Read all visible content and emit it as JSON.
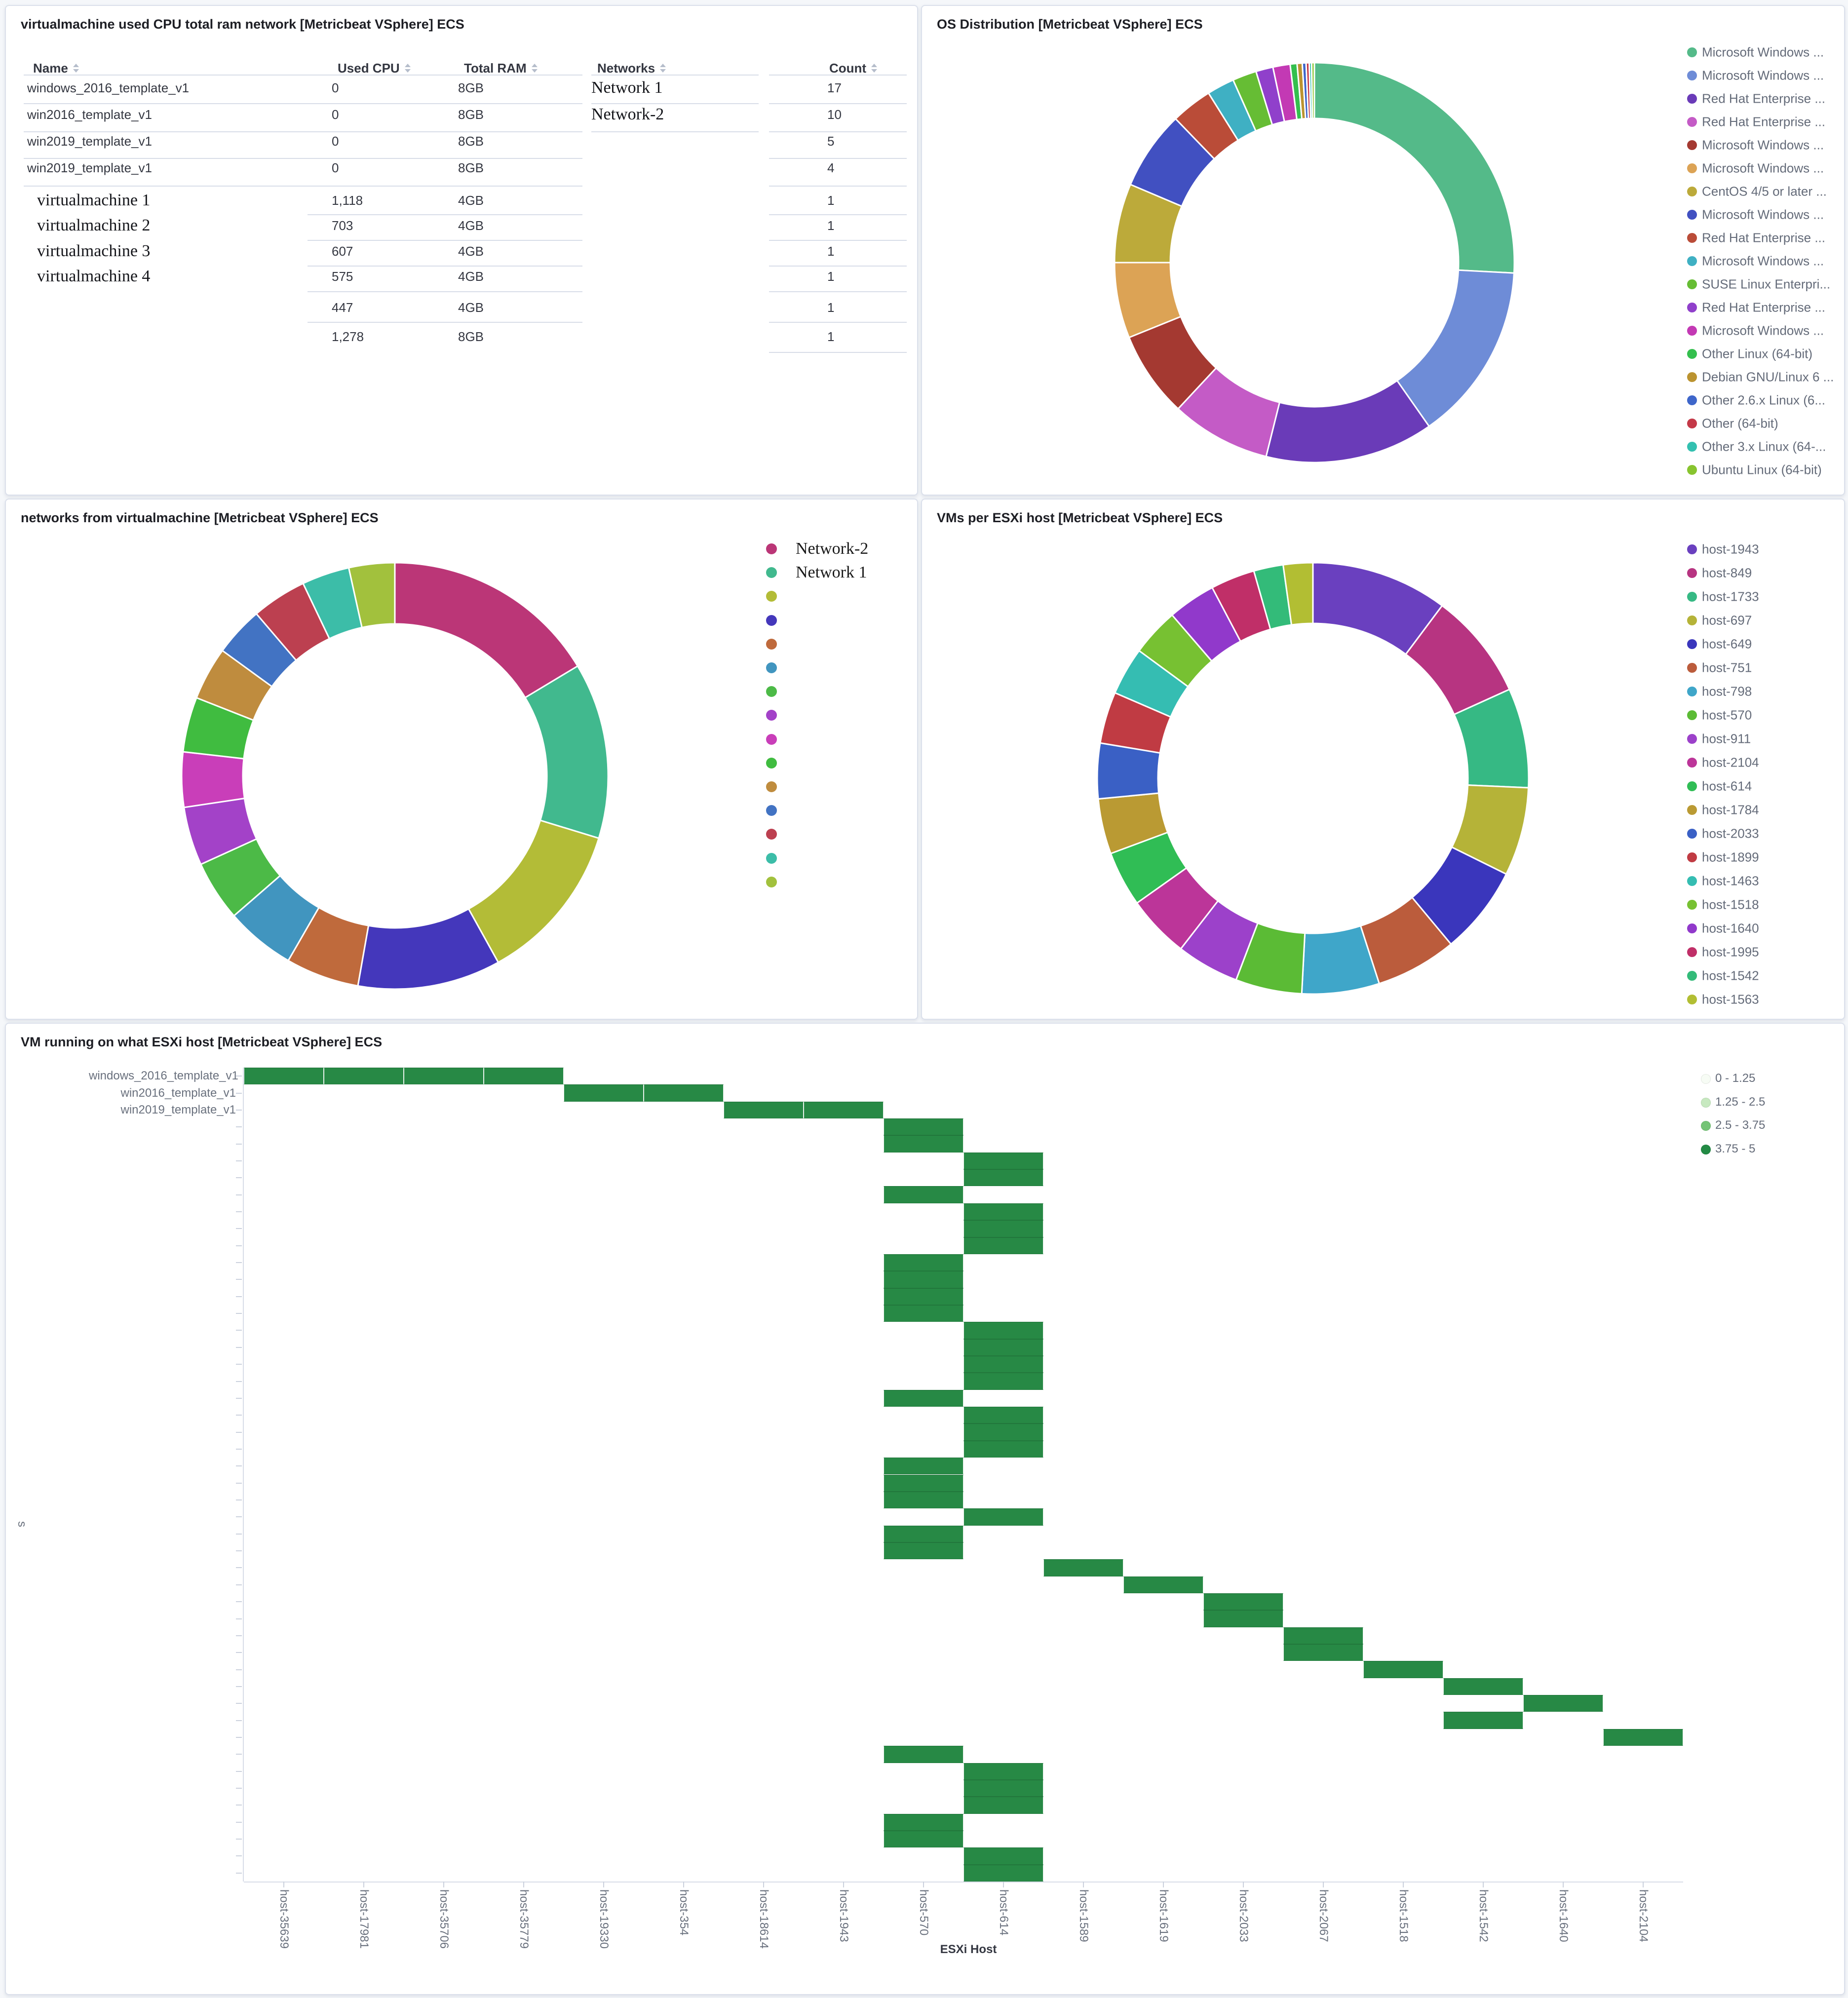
{
  "panels": {
    "vm_table": {
      "title": "virtualmachine used CPU total ram network [Metricbeat VSphere] ECS",
      "columns": [
        "Name",
        "Used CPU",
        "Total RAM",
        "Networks",
        "Count"
      ],
      "rows": [
        {
          "name": "windows_2016_template_v1",
          "serif": false,
          "used_cpu": "0",
          "total_ram": "8GB",
          "count": "17"
        },
        {
          "name": "win2016_template_v1",
          "serif": false,
          "used_cpu": "0",
          "total_ram": "8GB",
          "count": "10"
        },
        {
          "name": "win2019_template_v1",
          "serif": false,
          "used_cpu": "0",
          "total_ram": "8GB",
          "count": "5"
        },
        {
          "name": "win2019_template_v1",
          "serif": false,
          "used_cpu": "0",
          "total_ram": "8GB",
          "count": "4"
        },
        {
          "name": "virtualmachine 1",
          "serif": true,
          "used_cpu": "1,118",
          "total_ram": "4GB",
          "count": "1"
        },
        {
          "name": "virtualmachine 2",
          "serif": true,
          "used_cpu": "703",
          "total_ram": "4GB",
          "count": "1"
        },
        {
          "name": "virtualmachine 3",
          "serif": true,
          "used_cpu": "607",
          "total_ram": "4GB",
          "count": "1"
        },
        {
          "name": "virtualmachine 4",
          "serif": true,
          "used_cpu": "575",
          "total_ram": "4GB",
          "count": "1"
        },
        {
          "name": "",
          "serif": false,
          "used_cpu": "447",
          "total_ram": "4GB",
          "count": "1"
        },
        {
          "name": "",
          "serif": false,
          "used_cpu": "1,278",
          "total_ram": "8GB",
          "count": "1"
        }
      ],
      "network_values": [
        "Network 1",
        "Network-2"
      ]
    },
    "os_distribution": {
      "title": "OS Distribution [Metricbeat VSphere] ECS"
    },
    "networks": {
      "title": "networks from virtualmachine [Metricbeat VSphere] ECS"
    },
    "vms_per_host": {
      "title": "VMs per ESXi host [Metricbeat VSphere] ECS"
    },
    "vm_heatmap": {
      "title": "VM running on what ESXi host [Metricbeat VSphere] ECS",
      "x_axis_title": "ESXi Host",
      "y_axis_title": "s"
    }
  },
  "chart_data": [
    {
      "id": "os_distribution",
      "type": "pie",
      "donut": true,
      "title": "OS Distribution [Metricbeat VSphere] ECS",
      "legend_position": "right",
      "series": [
        {
          "label": "Microsoft Windows ...",
          "value": 93,
          "color": "#54BA89"
        },
        {
          "label": "Microsoft Windows ...",
          "value": 52,
          "color": "#6E8CD7"
        },
        {
          "label": "Red Hat Enterprise ...",
          "value": 49,
          "color": "#6A3BB8"
        },
        {
          "label": "Red Hat Enterprise ...",
          "value": 29,
          "color": "#C45BC6"
        },
        {
          "label": "Microsoft Windows ...",
          "value": 25,
          "color": "#A43931"
        },
        {
          "label": "Microsoft Windows ...",
          "value": 22,
          "color": "#DCA355"
        },
        {
          "label": "CentOS 4/5 or later ...",
          "value": 23,
          "color": "#BCAA3A"
        },
        {
          "label": "Microsoft Windows ...",
          "value": 23,
          "color": "#4150C1"
        },
        {
          "label": "Red Hat Enterprise ...",
          "value": 12,
          "color": "#BA4C38"
        },
        {
          "label": "Microsoft Windows ...",
          "value": 8,
          "color": "#3FB0C3"
        },
        {
          "label": "SUSE Linux Enterpri...",
          "value": 7,
          "color": "#66BD34"
        },
        {
          "label": "Red Hat Enterprise ...",
          "value": 5,
          "color": "#9040CB"
        },
        {
          "label": "Microsoft Windows ...",
          "value": 5,
          "color": "#C339B4"
        },
        {
          "label": "Other Linux (64-bit)",
          "value": 2,
          "color": "#34BF4E"
        },
        {
          "label": "Debian GNU/Linux 6 ...",
          "value": 1.5,
          "color": "#BB9330"
        },
        {
          "label": "Other 2.6.x Linux (6...",
          "value": 1.1,
          "color": "#3E66CA"
        },
        {
          "label": "Other (64-bit)",
          "value": 0.9,
          "color": "#C43948"
        },
        {
          "label": "Other 3.x Linux (64-...",
          "value": 0.7,
          "color": "#33C0B0"
        },
        {
          "label": "Ubuntu Linux (64-bit)",
          "value": 0.8,
          "color": "#88C42F"
        }
      ]
    },
    {
      "id": "networks",
      "type": "pie",
      "donut": true,
      "title": "networks from virtualmachine [Metricbeat VSphere] ECS",
      "legend_position": "right",
      "legend_serif_count": 15,
      "series": [
        {
          "label": "Network-2",
          "value": 59,
          "color": "#BB3677"
        },
        {
          "label": "Network 1",
          "value": 48,
          "color": "#41B98E"
        },
        {
          "label": "",
          "value": 44,
          "color": "#B3BC37"
        },
        {
          "label": "",
          "value": 39,
          "color": "#4437BB"
        },
        {
          "label": "",
          "value": 20,
          "color": "#BF6A3C"
        },
        {
          "label": "",
          "value": 19,
          "color": "#4195BF"
        },
        {
          "label": "",
          "value": 16.5,
          "color": "#4CBA47"
        },
        {
          "label": "",
          "value": 16,
          "color": "#A342C8"
        },
        {
          "label": "",
          "value": 15,
          "color": "#C93EB9"
        },
        {
          "label": "",
          "value": 15,
          "color": "#40BC40"
        },
        {
          "label": "",
          "value": 14.5,
          "color": "#BF8C3E"
        },
        {
          "label": "",
          "value": 13.5,
          "color": "#4273C3"
        },
        {
          "label": "",
          "value": 15,
          "color": "#BC4050"
        },
        {
          "label": "",
          "value": 13,
          "color": "#3CBDA8"
        },
        {
          "label": "",
          "value": 12.5,
          "color": "#A2C13D"
        }
      ]
    },
    {
      "id": "vms_per_host",
      "type": "pie",
      "donut": true,
      "title": "VMs per ESXi host [Metricbeat VSphere] ECS",
      "legend_position": "right",
      "series": [
        {
          "label": "host-1943",
          "value": 37,
          "color": "#6A40BF"
        },
        {
          "label": "host-849",
          "value": 29,
          "color": "#B73481"
        },
        {
          "label": "host-1733",
          "value": 27,
          "color": "#36B984"
        },
        {
          "label": "host-697",
          "value": 24,
          "color": "#B5B338"
        },
        {
          "label": "host-649",
          "value": 24,
          "color": "#3A36BC"
        },
        {
          "label": "host-751",
          "value": 22,
          "color": "#BB5C3C"
        },
        {
          "label": "host-798",
          "value": 21,
          "color": "#3FA6C9"
        },
        {
          "label": "host-570",
          "value": 18,
          "color": "#5BBB35"
        },
        {
          "label": "host-911",
          "value": 17,
          "color": "#9C41CA"
        },
        {
          "label": "host-2104",
          "value": 17,
          "color": "#BC3599"
        },
        {
          "label": "host-614",
          "value": 15,
          "color": "#30BD55"
        },
        {
          "label": "host-1784",
          "value": 15,
          "color": "#BA9A33"
        },
        {
          "label": "host-2033",
          "value": 15,
          "color": "#3A60C5"
        },
        {
          "label": "host-1899",
          "value": 14,
          "color": "#C03B43"
        },
        {
          "label": "host-1463",
          "value": 13,
          "color": "#35BDB2"
        },
        {
          "label": "host-1518",
          "value": 13,
          "color": "#77C132"
        },
        {
          "label": "host-1640",
          "value": 13,
          "color": "#9139CB"
        },
        {
          "label": "host-1995",
          "value": 12,
          "color": "#C02F68"
        },
        {
          "label": "host-1542",
          "value": 8,
          "color": "#33BB79"
        },
        {
          "label": "host-1563",
          "value": 8,
          "color": "#B2BE33"
        }
      ]
    },
    {
      "id": "vm_heatmap",
      "type": "heatmap",
      "title": "VM running on what ESXi host [Metricbeat VSphere] ECS",
      "xlabel": "ESXi Host",
      "x_categories": [
        "host-35639",
        "host-17981",
        "host-35706",
        "host-35779",
        "host-19330",
        "host-354",
        "host-18614",
        "host-1943",
        "host-570",
        "host-614",
        "host-1589",
        "host-1619",
        "host-2033",
        "host-2067",
        "host-1518",
        "host-1542",
        "host-1640",
        "host-2104"
      ],
      "y_labels": [
        "windows_2016_template_v1",
        "win2016_template_v1",
        "win2019_template_v1"
      ],
      "row_count": 48,
      "cell_value_bucket": "3.75 - 5",
      "cell_color": "#278945",
      "buckets": [
        {
          "label": "0 - 1.25",
          "color": "#F7FCF5"
        },
        {
          "label": "1.25 - 2.5",
          "color": "#C7E9C0"
        },
        {
          "label": "2.5 - 3.75",
          "color": "#74C476"
        },
        {
          "label": "3.75 - 5",
          "color": "#238B45"
        }
      ],
      "row_cols": [
        [
          0,
          1,
          2,
          3
        ],
        [
          4,
          5
        ],
        [
          6,
          7
        ],
        [
          8
        ],
        [
          8
        ],
        [
          9
        ],
        [
          9
        ],
        [
          8
        ],
        [
          9
        ],
        [
          9
        ],
        [
          9
        ],
        [
          8
        ],
        [
          8
        ],
        [
          8
        ],
        [
          8
        ],
        [
          9
        ],
        [
          9
        ],
        [
          9
        ],
        [
          9
        ],
        [
          8
        ],
        [
          9
        ],
        [
          9
        ],
        [
          9
        ],
        [
          8
        ],
        [
          8
        ],
        [
          8
        ],
        [
          9
        ],
        [
          8
        ],
        [
          8
        ],
        [
          10
        ],
        [
          11
        ],
        [
          12
        ],
        [
          12
        ],
        [
          13
        ],
        [
          13
        ],
        [
          14
        ],
        [
          15
        ],
        [
          16
        ],
        [
          15
        ],
        [
          17
        ],
        [
          8
        ],
        [
          9
        ],
        [
          9
        ],
        [
          9
        ],
        [
          8
        ],
        [
          8
        ],
        [
          9
        ],
        [
          9
        ]
      ]
    }
  ]
}
